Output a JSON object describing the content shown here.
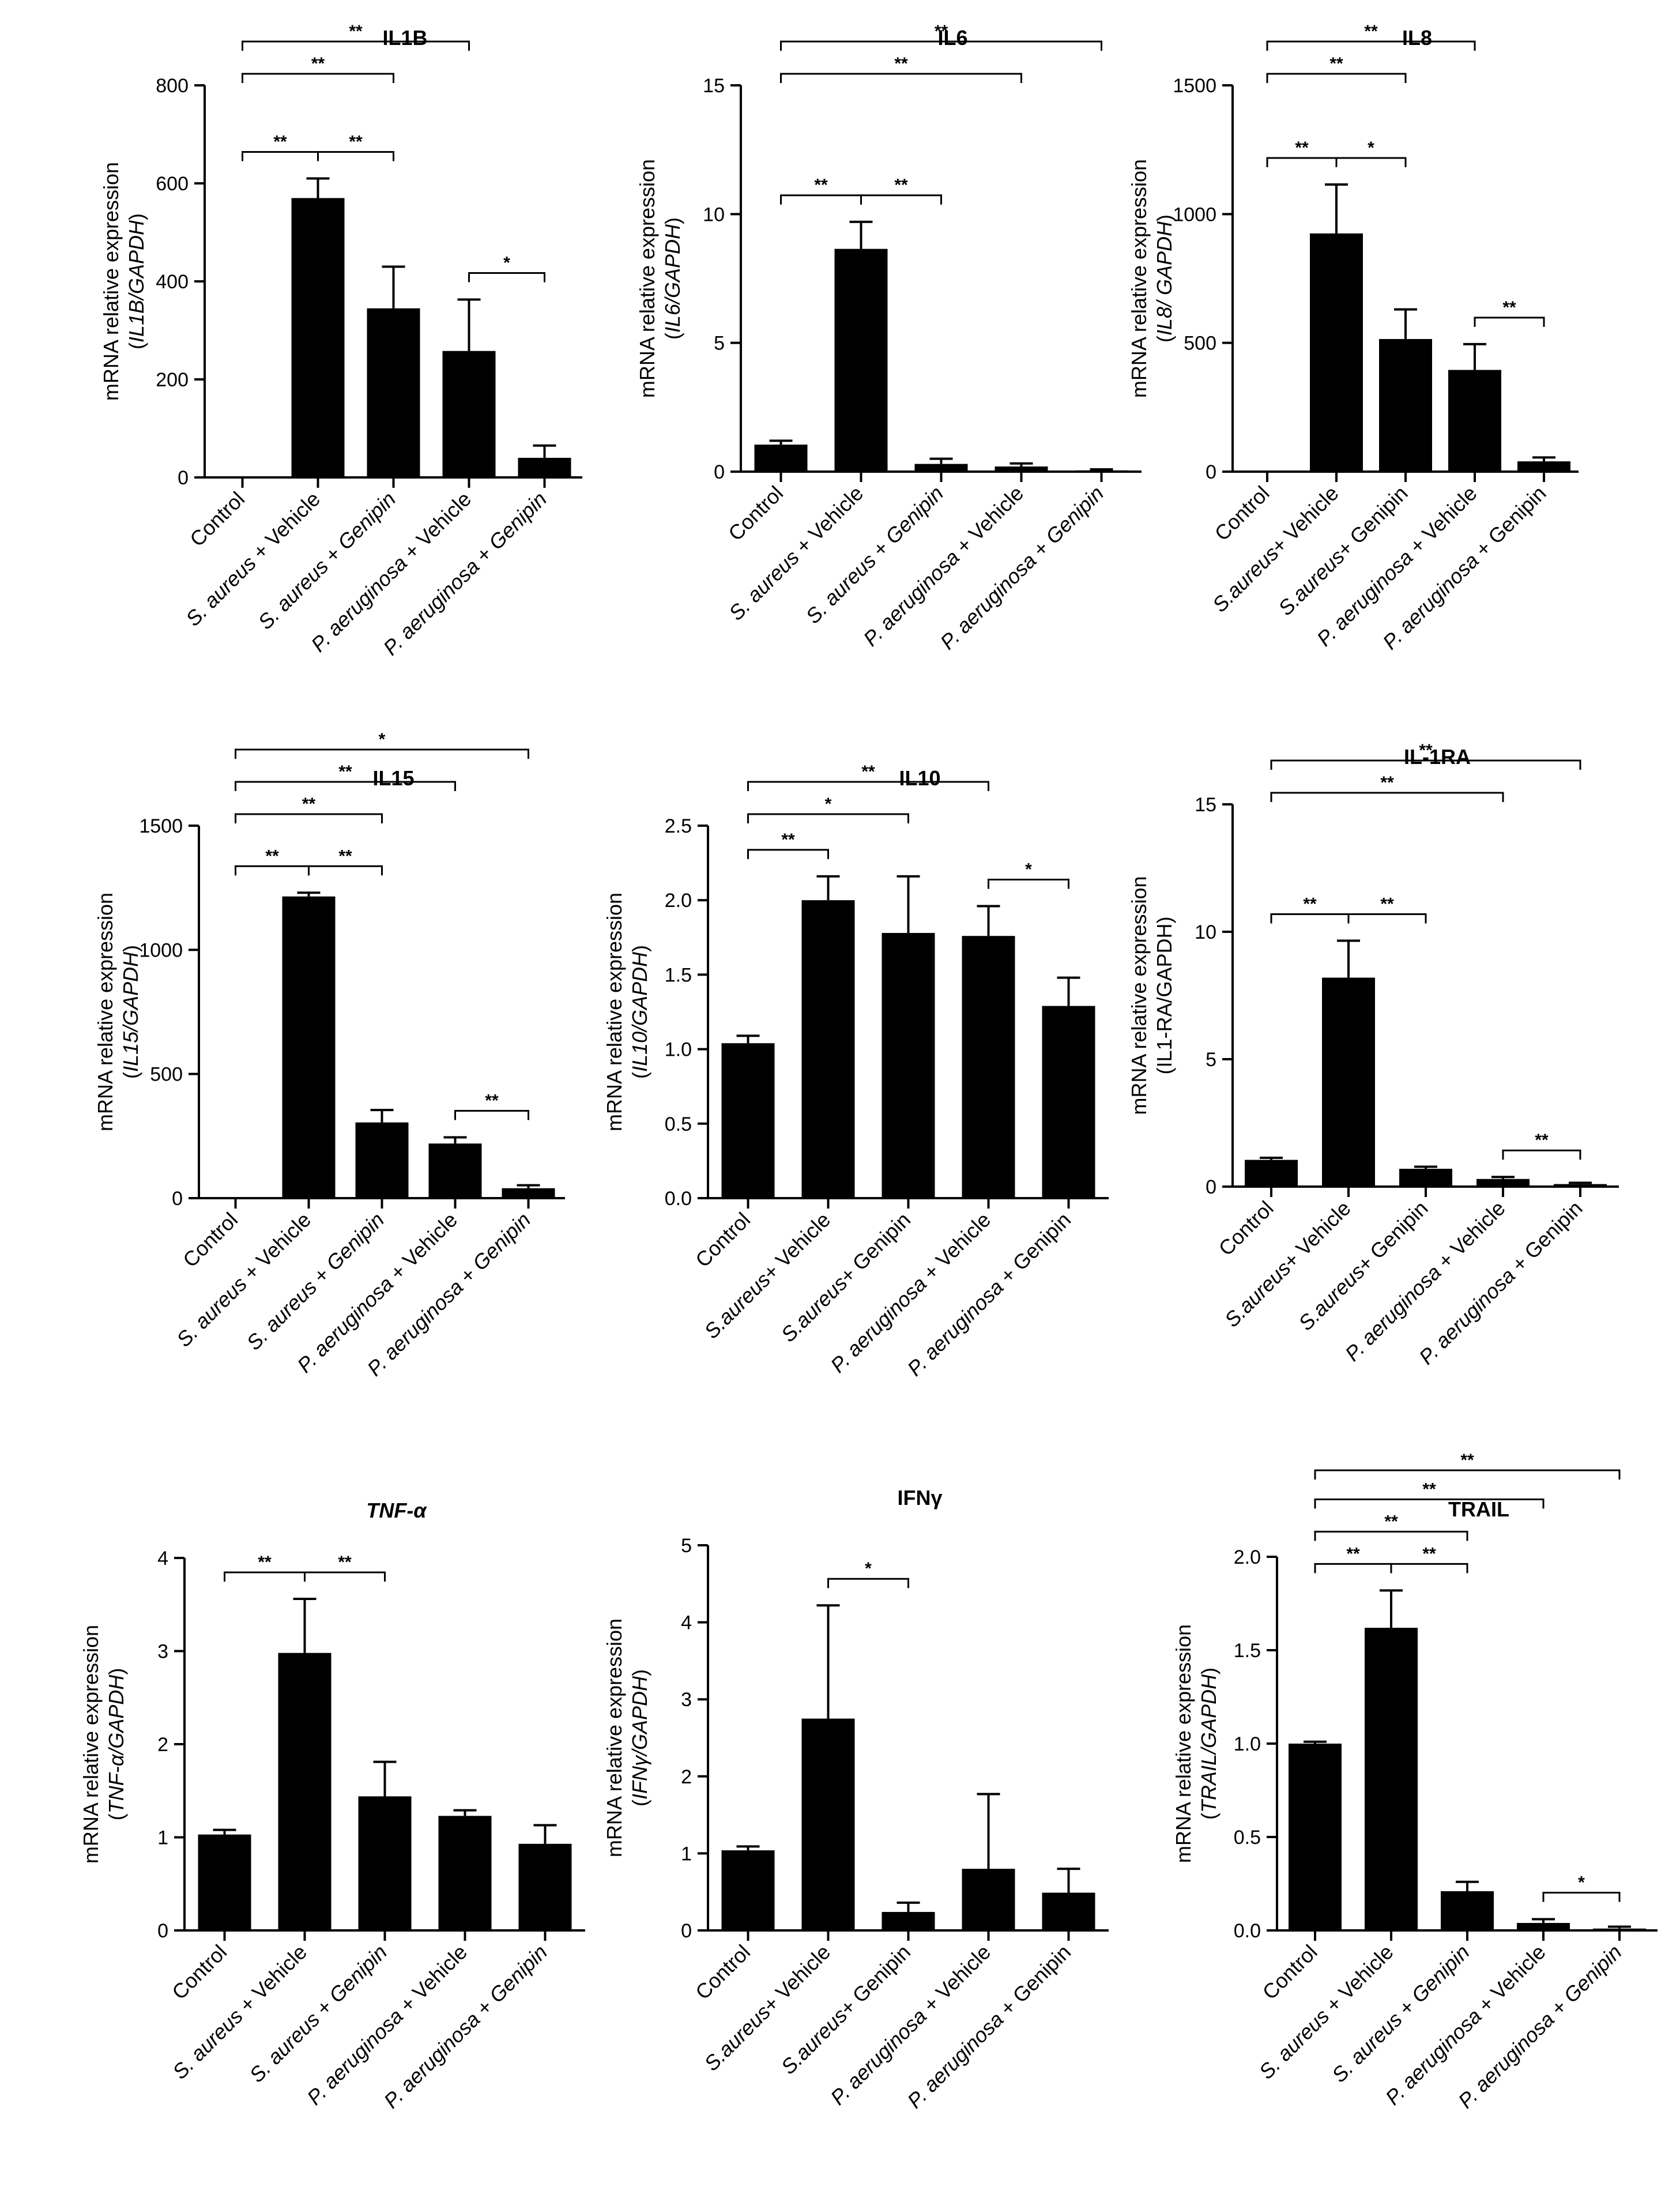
{
  "figure": {
    "background": "#ffffff",
    "bar_color": "#000000",
    "line_color": "#000000"
  },
  "chart_data": [
    {
      "type": "bar",
      "title": "IL1B",
      "title_italic": false,
      "ylabel_line1": "mRNA relative expression",
      "ylabel_line2": [
        {
          "t": "(",
          "i": false
        },
        {
          "t": "IL1B/GAPDH",
          "i": true
        },
        {
          "t": ")",
          "i": false
        }
      ],
      "ylim": [
        0,
        800
      ],
      "yticks": [
        0,
        200,
        400,
        600,
        800
      ],
      "yticklabels": [
        "0",
        "200",
        "400",
        "600",
        "800"
      ],
      "categories": [
        [
          {
            "t": "Control",
            "i": false
          }
        ],
        [
          {
            "t": "S. aureus",
            "i": true
          },
          {
            "t": " + Vehicle",
            "i": false
          }
        ],
        [
          {
            "t": "S. aureus",
            "i": true
          },
          {
            "t": " + ",
            "i": false
          },
          {
            "t": "Genipin",
            "i": true
          }
        ],
        [
          {
            "t": "P. aeruginosa",
            "i": true
          },
          {
            "t": " + Vehicle",
            "i": false
          }
        ],
        [
          {
            "t": "P. aeruginosa",
            "i": true
          },
          {
            "t": " + ",
            "i": false
          },
          {
            "t": "Genipin",
            "i": true
          }
        ]
      ],
      "values": [
        0,
        570,
        345,
        258,
        40
      ],
      "errors": [
        0,
        40,
        85,
        105,
        25
      ],
      "brackets": [
        {
          "from": 0,
          "to": 1,
          "label": "**",
          "level": 0
        },
        {
          "from": 1,
          "to": 2,
          "label": "**",
          "level": 0
        },
        {
          "from": 3,
          "to": 4,
          "label": "*",
          "level": 0
        },
        {
          "from": 0,
          "to": 2,
          "label": "**",
          "level": 1
        },
        {
          "from": 0,
          "to": 3,
          "label": "**",
          "level": 2
        }
      ]
    },
    {
      "type": "bar",
      "title": "IL6",
      "title_italic": false,
      "ylabel_line1": "mRNA relative expression",
      "ylabel_line2": [
        {
          "t": "(",
          "i": false
        },
        {
          "t": "IL6/GAPDH",
          "i": true
        },
        {
          "t": ")",
          "i": false
        }
      ],
      "ylim": [
        0,
        15
      ],
      "yticks": [
        0,
        5,
        10,
        15
      ],
      "yticklabels": [
        "0",
        "5",
        "10",
        "15"
      ],
      "categories": [
        [
          {
            "t": "Control",
            "i": false
          }
        ],
        [
          {
            "t": "S. aureus",
            "i": true
          },
          {
            "t": " + Vehicle",
            "i": false
          }
        ],
        [
          {
            "t": "S. aureus",
            "i": true
          },
          {
            "t": " + ",
            "i": false
          },
          {
            "t": "Genipin",
            "i": true
          }
        ],
        [
          {
            "t": "P. aeruginosa",
            "i": true
          },
          {
            "t": " + Vehicle",
            "i": false
          }
        ],
        [
          {
            "t": "P. aeruginosa",
            "i": true
          },
          {
            "t": " + ",
            "i": false
          },
          {
            "t": "Genipin",
            "i": true
          }
        ]
      ],
      "values": [
        1.05,
        8.65,
        0.3,
        0.2,
        0.05
      ],
      "errors": [
        0.15,
        1.05,
        0.2,
        0.12,
        0.04
      ],
      "brackets": [
        {
          "from": 0,
          "to": 1,
          "label": "**",
          "level": 0
        },
        {
          "from": 1,
          "to": 2,
          "label": "**",
          "level": 0
        },
        {
          "from": 0,
          "to": 3,
          "label": "**",
          "level": 1
        },
        {
          "from": 0,
          "to": 4,
          "label": "**",
          "level": 2
        }
      ]
    },
    {
      "type": "bar",
      "title": "IL8",
      "title_italic": false,
      "ylabel_line1": "mRNA relative expression",
      "ylabel_line2": [
        {
          "t": "(",
          "i": false
        },
        {
          "t": "IL8/ GAPDH",
          "i": true
        },
        {
          "t": ")",
          "i": false
        }
      ],
      "ylim": [
        0,
        1500
      ],
      "yticks": [
        0,
        500,
        1000,
        1500
      ],
      "yticklabels": [
        "0",
        "500",
        "1000",
        "1500"
      ],
      "categories": [
        [
          {
            "t": "Control",
            "i": false
          }
        ],
        [
          {
            "t": "S.aureus",
            "i": true
          },
          {
            "t": "+ Vehicle",
            "i": false
          }
        ],
        [
          {
            "t": "S.aureus",
            "i": true
          },
          {
            "t": "+ Genipin",
            "i": false
          }
        ],
        [
          {
            "t": "P. aeruginosa",
            "i": true
          },
          {
            "t": " + Vehicle",
            "i": false
          }
        ],
        [
          {
            "t": "P. aeruginosa",
            "i": true
          },
          {
            "t": " + Genipin",
            "i": false
          }
        ]
      ],
      "values": [
        0,
        925,
        515,
        395,
        40
      ],
      "errors": [
        0,
        190,
        115,
        100,
        15
      ],
      "brackets": [
        {
          "from": 0,
          "to": 1,
          "label": "**",
          "level": 0
        },
        {
          "from": 1,
          "to": 2,
          "label": "*",
          "level": 0
        },
        {
          "from": 3,
          "to": 4,
          "label": "**",
          "level": 0
        },
        {
          "from": 0,
          "to": 2,
          "label": "**",
          "level": 1
        },
        {
          "from": 0,
          "to": 3,
          "label": "**",
          "level": 2
        }
      ]
    },
    {
      "type": "bar",
      "title": "IL15",
      "title_italic": false,
      "ylabel_line1": "mRNA relative expression",
      "ylabel_line2": [
        {
          "t": "(",
          "i": false
        },
        {
          "t": "IL15/GAPDH",
          "i": true
        },
        {
          "t": ")",
          "i": false
        }
      ],
      "ylim": [
        0,
        1500
      ],
      "yticks": [
        0,
        500,
        1000,
        1500
      ],
      "yticklabels": [
        "0",
        "500",
        "1000",
        "1500"
      ],
      "categories": [
        [
          {
            "t": "Control",
            "i": false
          }
        ],
        [
          {
            "t": "S. aureus",
            "i": true
          },
          {
            "t": " + Vehicle",
            "i": false
          }
        ],
        [
          {
            "t": "S. aureus",
            "i": true
          },
          {
            "t": " + ",
            "i": false
          },
          {
            "t": "Genipin",
            "i": true
          }
        ],
        [
          {
            "t": "P. aeruginosa",
            "i": true
          },
          {
            "t": " + Vehicle",
            "i": false
          }
        ],
        [
          {
            "t": "P. aeruginosa",
            "i": true
          },
          {
            "t": " + ",
            "i": false
          },
          {
            "t": "Genipin",
            "i": true
          }
        ]
      ],
      "values": [
        0,
        1215,
        305,
        220,
        40
      ],
      "errors": [
        0,
        15,
        50,
        25,
        12
      ],
      "brackets": [
        {
          "from": 0,
          "to": 1,
          "label": "**",
          "level": 0
        },
        {
          "from": 1,
          "to": 2,
          "label": "**",
          "level": 0
        },
        {
          "from": 3,
          "to": 4,
          "label": "**",
          "level": 0
        },
        {
          "from": 0,
          "to": 2,
          "label": "**",
          "level": 1
        },
        {
          "from": 0,
          "to": 3,
          "label": "**",
          "level": 2
        },
        {
          "from": 0,
          "to": 4,
          "label": "*",
          "level": 3
        }
      ]
    },
    {
      "type": "bar",
      "title": "IL10",
      "title_italic": false,
      "ylabel_line1": "mRNA relative expression",
      "ylabel_line2": [
        {
          "t": "(",
          "i": false
        },
        {
          "t": "IL10/GAPDH",
          "i": true
        },
        {
          "t": ")",
          "i": false
        }
      ],
      "ylim": [
        0,
        2.5
      ],
      "yticks": [
        0,
        0.5,
        1.0,
        1.5,
        2.0,
        2.5
      ],
      "yticklabels": [
        "0.0",
        "0.5",
        "1.0",
        "1.5",
        "2.0",
        "2.5"
      ],
      "categories": [
        [
          {
            "t": "Control",
            "i": false
          }
        ],
        [
          {
            "t": "S.aureus",
            "i": true
          },
          {
            "t": "+ Vehicle",
            "i": false
          }
        ],
        [
          {
            "t": "S.aureus",
            "i": true
          },
          {
            "t": "+ Genipin",
            "i": false
          }
        ],
        [
          {
            "t": "P. aeruginosa",
            "i": true
          },
          {
            "t": " + Vehicle",
            "i": false
          }
        ],
        [
          {
            "t": "P. aeruginosa",
            "i": true
          },
          {
            "t": " + Genipin",
            "i": false
          }
        ]
      ],
      "values": [
        1.04,
        2.0,
        1.78,
        1.76,
        1.29
      ],
      "errors": [
        0.05,
        0.16,
        0.38,
        0.2,
        0.19
      ],
      "brackets": [
        {
          "from": 0,
          "to": 1,
          "label": "**",
          "level": 0
        },
        {
          "from": 3,
          "to": 4,
          "label": "*",
          "level": 0
        },
        {
          "from": 0,
          "to": 2,
          "label": "*",
          "level": 1
        },
        {
          "from": 0,
          "to": 3,
          "label": "**",
          "level": 2
        }
      ]
    },
    {
      "type": "bar",
      "title": "IL-1RA",
      "title_italic": false,
      "ylabel_line1": "mRNA relative expression",
      "ylabel_line2": [
        {
          "t": "(IL1-RA/GAPDH)",
          "i": false
        }
      ],
      "ylim": [
        0,
        15
      ],
      "yticks": [
        0,
        5,
        10,
        15
      ],
      "yticklabels": [
        "0",
        "5",
        "10",
        "15"
      ],
      "categories": [
        [
          {
            "t": "Control",
            "i": false
          }
        ],
        [
          {
            "t": "S.aureus",
            "i": true
          },
          {
            "t": "+ Vehicle",
            "i": false
          }
        ],
        [
          {
            "t": "S.aureus",
            "i": true
          },
          {
            "t": "+ Genipin",
            "i": false
          }
        ],
        [
          {
            "t": "P. aeruginosa",
            "i": true
          },
          {
            "t": " + Vehicle",
            "i": false
          }
        ],
        [
          {
            "t": "P. aeruginosa",
            "i": true
          },
          {
            "t": " + Genipin",
            "i": false
          }
        ]
      ],
      "values": [
        1.05,
        8.2,
        0.7,
        0.3,
        0.1
      ],
      "errors": [
        0.08,
        1.45,
        0.08,
        0.08,
        0.05
      ],
      "brackets": [
        {
          "from": 0,
          "to": 1,
          "label": "**",
          "level": 0
        },
        {
          "from": 1,
          "to": 2,
          "label": "**",
          "level": 0
        },
        {
          "from": 3,
          "to": 4,
          "label": "**",
          "level": 0
        },
        {
          "from": 0,
          "to": 3,
          "label": "**",
          "level": 1
        },
        {
          "from": 0,
          "to": 4,
          "label": "**",
          "level": 2
        }
      ]
    },
    {
      "type": "bar",
      "title": "TNF-α",
      "title_italic": true,
      "ylabel_line1": "mRNA relative expression",
      "ylabel_line2": [
        {
          "t": "(",
          "i": false
        },
        {
          "t": "TNF-α/GAPDH",
          "i": true
        },
        {
          "t": ")",
          "i": false
        }
      ],
      "ylim": [
        0,
        4
      ],
      "yticks": [
        0,
        1,
        2,
        3,
        4
      ],
      "yticklabels": [
        "0",
        "1",
        "2",
        "3",
        "4"
      ],
      "categories": [
        [
          {
            "t": "Control",
            "i": false
          }
        ],
        [
          {
            "t": "S. aureus",
            "i": true
          },
          {
            "t": " + Vehicle",
            "i": false
          }
        ],
        [
          {
            "t": "S. aureus",
            "i": true
          },
          {
            "t": " + ",
            "i": false
          },
          {
            "t": "Genipin",
            "i": true
          }
        ],
        [
          {
            "t": "P. aeruginosa",
            "i": true
          },
          {
            "t": " + Vehicle",
            "i": false
          }
        ],
        [
          {
            "t": "P. aeruginosa",
            "i": true
          },
          {
            "t": " + ",
            "i": false
          },
          {
            "t": "Genipin",
            "i": true
          }
        ]
      ],
      "values": [
        1.03,
        2.98,
        1.44,
        1.23,
        0.93
      ],
      "errors": [
        0.05,
        0.58,
        0.37,
        0.06,
        0.2
      ],
      "brackets": [
        {
          "from": 0,
          "to": 1,
          "label": "**",
          "level": 0
        },
        {
          "from": 1,
          "to": 2,
          "label": "**",
          "level": 0
        }
      ]
    },
    {
      "type": "bar",
      "title": "IFNγ",
      "title_italic": false,
      "ylabel_line1": "mRNA relative expression",
      "ylabel_line2": [
        {
          "t": "(",
          "i": false
        },
        {
          "t": "IFNγ/GAPDH",
          "i": true
        },
        {
          "t": ")",
          "i": false
        }
      ],
      "ylim": [
        0,
        5
      ],
      "yticks": [
        0,
        1,
        2,
        3,
        4,
        5
      ],
      "yticklabels": [
        "0",
        "1",
        "2",
        "3",
        "4",
        "5"
      ],
      "categories": [
        [
          {
            "t": "Control",
            "i": false
          }
        ],
        [
          {
            "t": "S.aureus",
            "i": true
          },
          {
            "t": "+ Vehicle",
            "i": false
          }
        ],
        [
          {
            "t": "S.aureus",
            "i": true
          },
          {
            "t": "+ Genipin",
            "i": false
          }
        ],
        [
          {
            "t": "P. aeruginosa",
            "i": true
          },
          {
            "t": " + Vehicle",
            "i": false
          }
        ],
        [
          {
            "t": "P. aeruginosa",
            "i": true
          },
          {
            "t": " + Genipin",
            "i": false
          }
        ]
      ],
      "values": [
        1.04,
        2.75,
        0.24,
        0.8,
        0.49
      ],
      "errors": [
        0.05,
        1.47,
        0.12,
        0.97,
        0.31
      ],
      "brackets": [
        {
          "from": 1,
          "to": 2,
          "label": "*",
          "level": 0
        }
      ]
    },
    {
      "type": "bar",
      "title": "TRAIL",
      "title_italic": false,
      "ylabel_line1": "mRNA relative expression",
      "ylabel_line2": [
        {
          "t": "(",
          "i": false
        },
        {
          "t": "TRAIL/GAPDH",
          "i": true
        },
        {
          "t": ")",
          "i": false
        }
      ],
      "ylim": [
        0,
        2.0
      ],
      "yticks": [
        0,
        0.5,
        1.0,
        1.5,
        2.0
      ],
      "yticklabels": [
        "0.0",
        "0.5",
        "1.0",
        "1.5",
        "2.0"
      ],
      "categories": [
        [
          {
            "t": "Control",
            "i": false
          }
        ],
        [
          {
            "t": "S. aureus",
            "i": true
          },
          {
            "t": " + Vehicle",
            "i": false
          }
        ],
        [
          {
            "t": "S. aureus",
            "i": true
          },
          {
            "t": " + ",
            "i": false
          },
          {
            "t": "Genipin",
            "i": true
          }
        ],
        [
          {
            "t": "P. aeruginosa",
            "i": true
          },
          {
            "t": " + Vehicle",
            "i": false
          }
        ],
        [
          {
            "t": "P. aeruginosa",
            "i": true
          },
          {
            "t": " + ",
            "i": false
          },
          {
            "t": "Genipin",
            "i": true
          }
        ]
      ],
      "values": [
        1.0,
        1.62,
        0.21,
        0.04,
        0.01
      ],
      "errors": [
        0.01,
        0.2,
        0.05,
        0.02,
        0.01
      ],
      "brackets": [
        {
          "from": 0,
          "to": 1,
          "label": "**",
          "level": 0
        },
        {
          "from": 1,
          "to": 2,
          "label": "**",
          "level": 0
        },
        {
          "from": 3,
          "to": 4,
          "label": "*",
          "level": 0
        },
        {
          "from": 0,
          "to": 2,
          "label": "**",
          "level": 1
        },
        {
          "from": 0,
          "to": 3,
          "label": "**",
          "level": 2
        },
        {
          "from": 0,
          "to": 4,
          "label": "**",
          "level": 3
        }
      ]
    }
  ]
}
